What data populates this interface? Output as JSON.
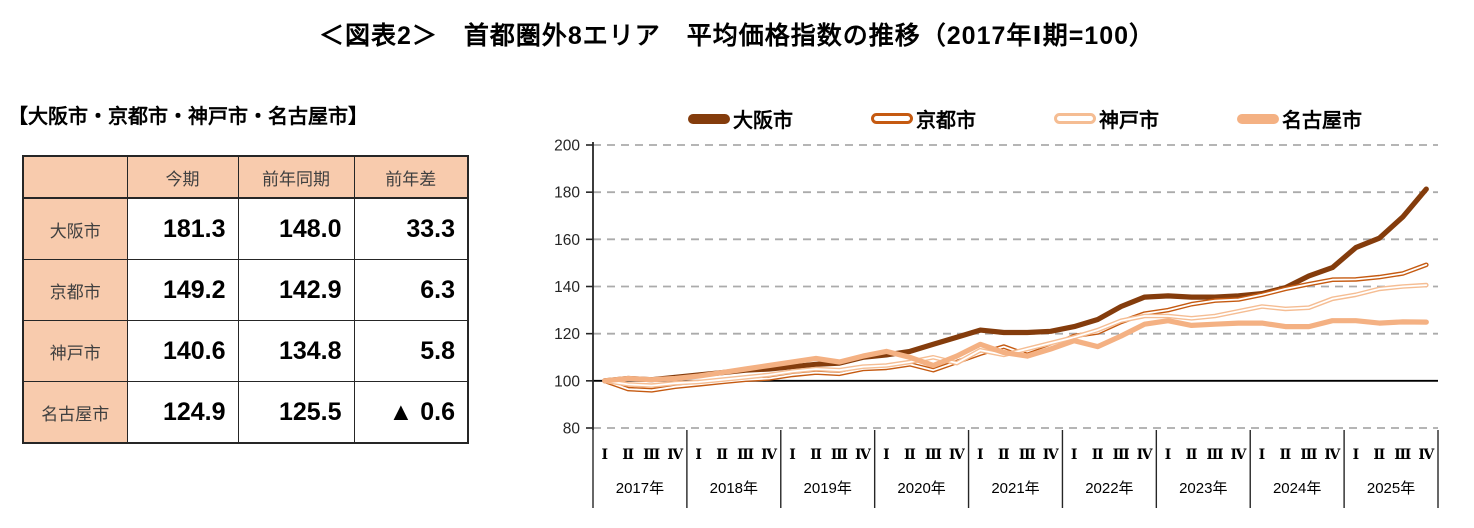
{
  "title": "＜図表2＞　首都圏外8エリア　平均価格指数の推移（2017年Ⅰ期=100）",
  "table_section": {
    "heading": "【大阪市・京都市・神戸市・名古屋市】",
    "columns": {
      "current": "今期",
      "prev_year": "前年同期",
      "diff": "前年差"
    },
    "rows": [
      {
        "label": "大阪市",
        "current": "181.3",
        "prev_year": "148.0",
        "diff": "33.3"
      },
      {
        "label": "京都市",
        "current": "149.2",
        "prev_year": "142.9",
        "diff": "6.3"
      },
      {
        "label": "神戸市",
        "current": "140.6",
        "prev_year": "134.8",
        "diff": "5.8"
      },
      {
        "label": "名古屋市",
        "current": "124.9",
        "prev_year": "125.5",
        "diff": "▲ 0.6"
      }
    ]
  },
  "chart_data": {
    "type": "line",
    "title": "首都圏外8エリア 平均価格指数の推移",
    "x_years": [
      "2017年",
      "2018年",
      "2019年",
      "2020年",
      "2021年",
      "2022年",
      "2023年",
      "2024年",
      "2025年"
    ],
    "quarter_labels": [
      "Ⅰ",
      "Ⅱ",
      "Ⅲ",
      "Ⅳ"
    ],
    "ylim": [
      80,
      200
    ],
    "yticks": [
      80,
      100,
      120,
      140,
      160,
      180,
      200
    ],
    "baseline": 100,
    "grid": "horizontal-dashed",
    "legend_position": "top",
    "grid_color": "#ABABAB",
    "axis_color": "#262626",
    "series": [
      {
        "key": "osaka",
        "name": "大阪市",
        "color": "#843C0C",
        "style": "solid-thick",
        "values": [
          100,
          101,
          100.5,
          101.5,
          102.5,
          103.5,
          104.5,
          105,
          106,
          107,
          107.5,
          110,
          111,
          112.5,
          115.5,
          118.5,
          121.5,
          120.5,
          120.5,
          121,
          123,
          126,
          131.5,
          135.5,
          136,
          135.5,
          135.5,
          136,
          137,
          139.5,
          144.5,
          148.0,
          156.5,
          160.5,
          169.5,
          181.3
        ]
      },
      {
        "key": "kyoto",
        "name": "京都市",
        "color": "#C55A11",
        "style": "outlined",
        "values": [
          100,
          96.5,
          96,
          97.5,
          98.5,
          99.5,
          100.5,
          101,
          102.5,
          103.5,
          103,
          105,
          105.5,
          107,
          104.5,
          108,
          111.5,
          114.5,
          111,
          114.5,
          119,
          120.5,
          125,
          128.5,
          130,
          132.5,
          134,
          134.5,
          136.5,
          139,
          141,
          142.9,
          143,
          144,
          145.5,
          149.2
        ]
      },
      {
        "key": "kobe",
        "name": "神戸市",
        "color": "#F5BD93",
        "style": "outlined",
        "values": [
          100,
          98.5,
          98,
          99,
          99.5,
          100.5,
          101.5,
          102.5,
          104,
          105,
          104.5,
          106,
          106.5,
          108,
          110,
          107.5,
          113,
          111,
          113.5,
          116,
          118.5,
          121.5,
          125.5,
          127.5,
          127.5,
          126.5,
          127.5,
          129.5,
          131.5,
          130.5,
          131,
          134.8,
          136.5,
          139,
          140,
          140.6
        ]
      },
      {
        "key": "nagoya",
        "name": "名古屋市",
        "color": "#F4B183",
        "style": "solid-thick",
        "values": [
          100,
          101,
          100.5,
          101,
          102,
          103.5,
          105,
          106.5,
          108,
          109.5,
          108,
          110.5,
          112.5,
          110,
          106.5,
          110.5,
          115.5,
          112,
          110.5,
          113.5,
          117,
          114.5,
          119,
          124,
          125.5,
          123.5,
          124,
          124.5,
          124.5,
          123,
          123,
          125.5,
          125.5,
          124.5,
          125,
          124.9
        ]
      }
    ]
  }
}
